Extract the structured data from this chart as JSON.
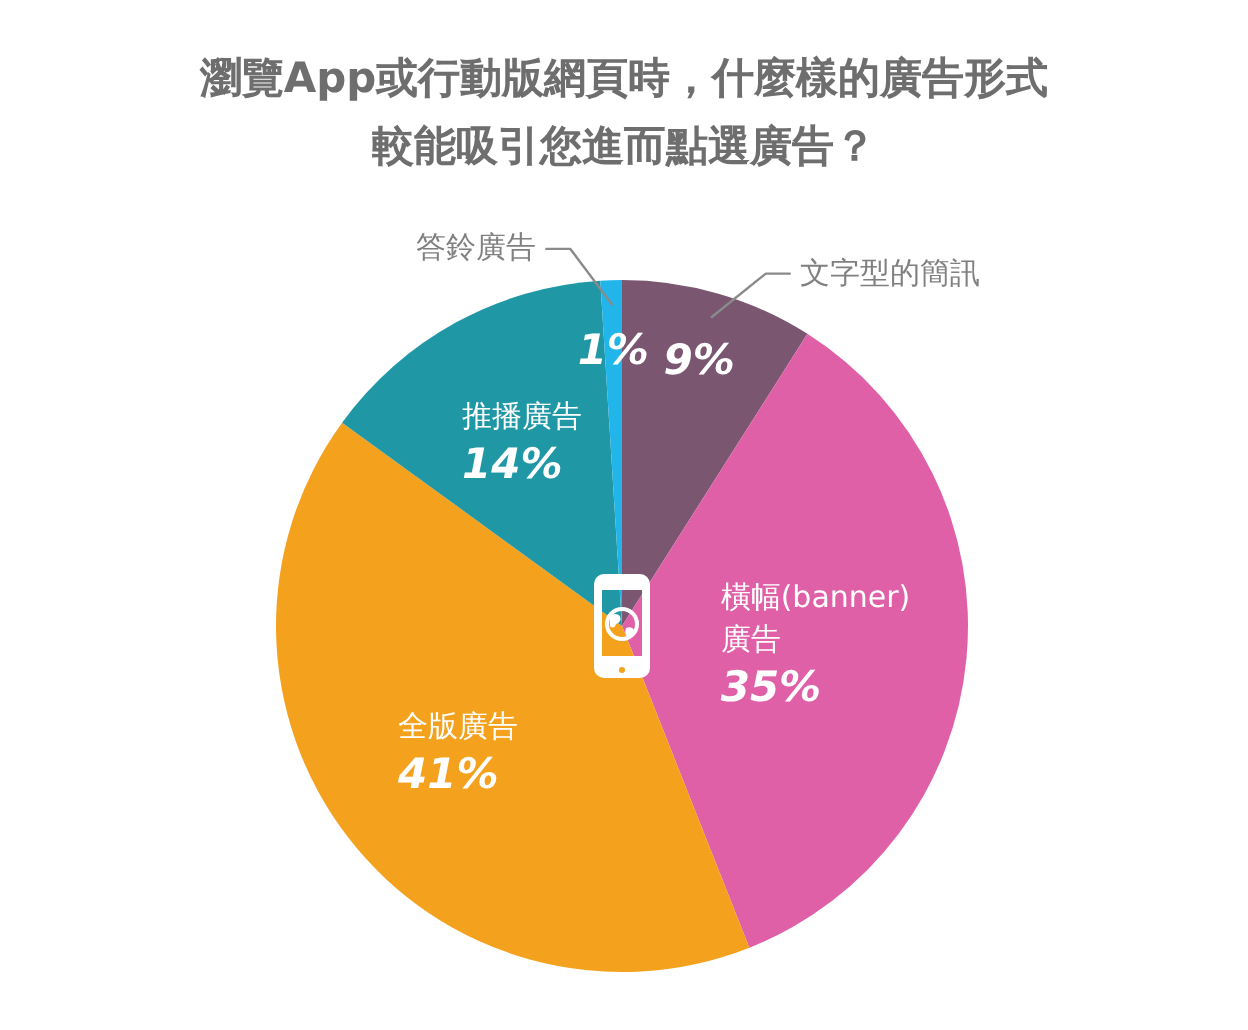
{
  "chart_data": {
    "type": "pie",
    "title": "瀏覽App或行動版網頁時，什麼樣的廣告形式較能吸引您進而點選廣告？",
    "categories": [
      "文字型的簡訊",
      "橫幅(banner)廣告",
      "全版廣告",
      "推播廣告",
      "答鈴廣告"
    ],
    "values": [
      9,
      35,
      41,
      14,
      1
    ],
    "colors": [
      "#7b5670",
      "#e060a8",
      "#f4a21e",
      "#1f97a5",
      "#22b5ea"
    ],
    "value_labels": [
      "9%",
      "35%",
      "41%",
      "14%",
      "1%"
    ]
  }
}
